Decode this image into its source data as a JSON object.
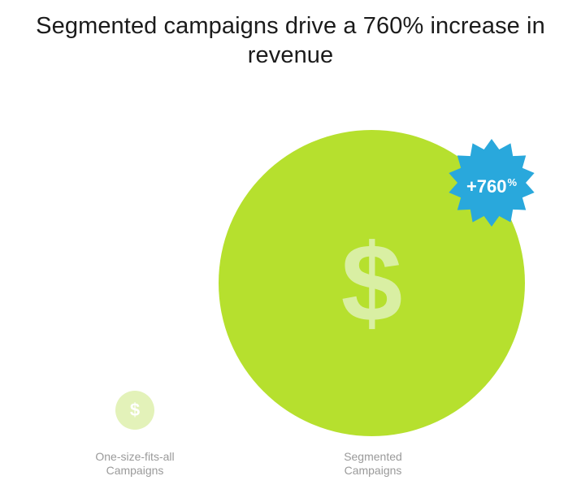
{
  "title": {
    "line1": "Segmented campaigns drive a 760% increase in",
    "line2": "revenue"
  },
  "badge": {
    "value": "+760",
    "unit": "%",
    "color": "#29a8dc"
  },
  "icons": {
    "small_symbol": "$",
    "big_symbol": "$"
  },
  "items": [
    {
      "label_line1": "One-size-fits-all",
      "label_line2": "Campaigns",
      "color": "#e3f2b9",
      "relative_revenue": 1
    },
    {
      "label_line1": "Segmented",
      "label_line2": "Campaigns",
      "color": "#b6e02e",
      "relative_revenue": 8.6
    }
  ]
}
